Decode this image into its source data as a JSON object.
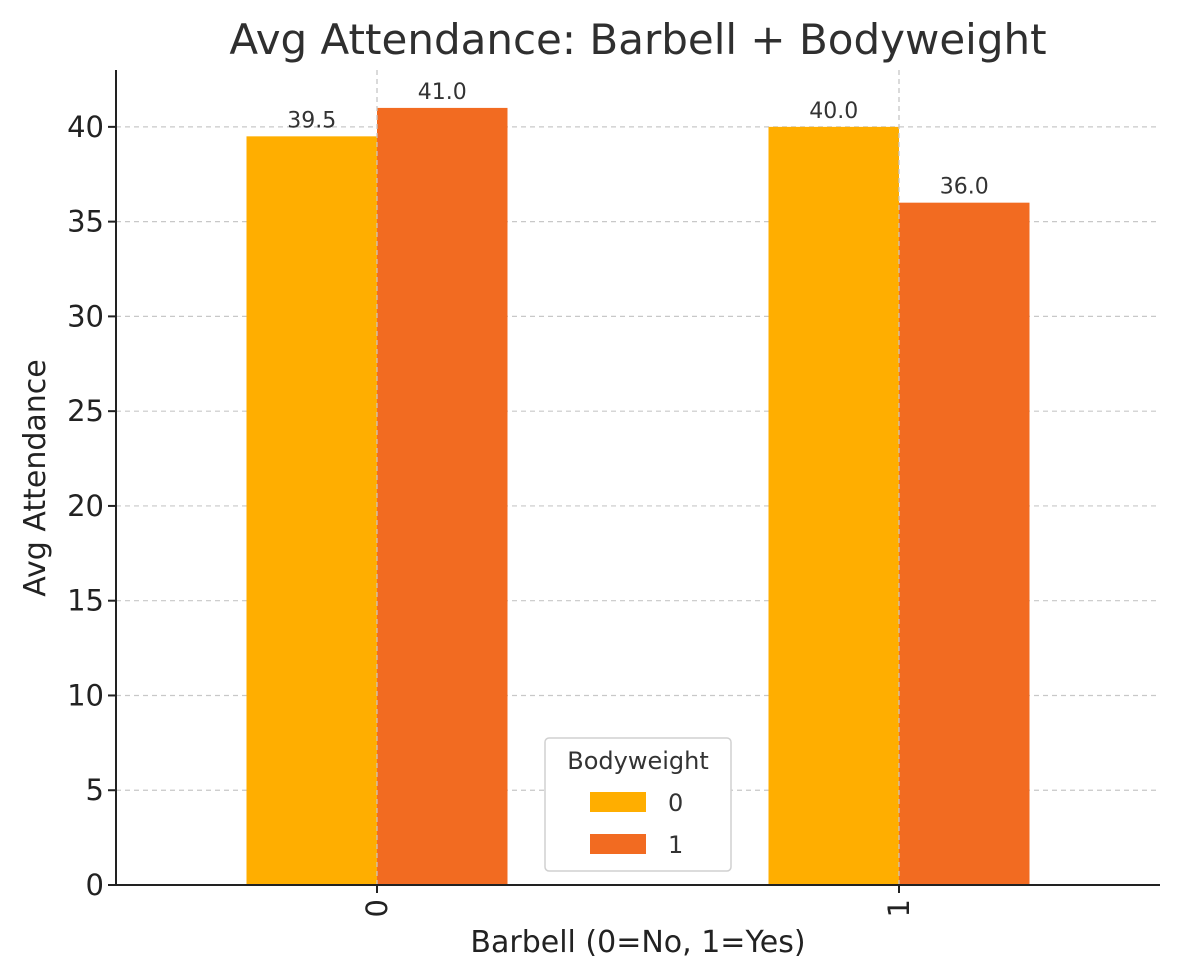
{
  "chart_data": {
    "type": "bar",
    "title": "Avg Attendance: Barbell + Bodyweight",
    "xlabel": "Barbell (0=No, 1=Yes)",
    "ylabel": "Avg Attendance",
    "categories": [
      "0",
      "1"
    ],
    "series": [
      {
        "name": "0",
        "values": [
          39.5,
          40.0
        ],
        "color": "#FFAE00"
      },
      {
        "name": "1",
        "values": [
          41.0,
          36.0
        ],
        "color": "#F26B21"
      }
    ],
    "ylim": [
      0,
      43
    ],
    "yticks": [
      0,
      5,
      10,
      15,
      20,
      25,
      30,
      35,
      40
    ],
    "data_labels": [
      [
        "39.5",
        "40.0"
      ],
      [
        "41.0",
        "36.0"
      ]
    ],
    "legend": {
      "title": "Bodyweight",
      "position": "lower-center"
    },
    "grid": true,
    "x_tick_rotation": 90
  }
}
